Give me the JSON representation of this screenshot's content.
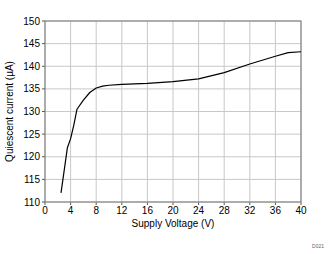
{
  "chart_data": {
    "type": "line",
    "x_label": "Supply Voltage (V)",
    "y_label": "Quiescent current (µA)",
    "annotation": "D021",
    "x": [
      2.5,
      3,
      3.5,
      4,
      4.5,
      5,
      6,
      7,
      8,
      9,
      10,
      12,
      16,
      20,
      24,
      28,
      32,
      36,
      38,
      40
    ],
    "series": [
      {
        "name": "Quiescent current",
        "color": "#000000",
        "values": [
          112,
          117,
          122,
          124,
          127,
          130.5,
          132.5,
          134.2,
          135.2,
          135.6,
          135.8,
          136,
          136.2,
          136.6,
          137.2,
          138.6,
          140.5,
          142.2,
          143,
          143.2
        ]
      }
    ],
    "xlim": [
      0,
      40
    ],
    "xticks": [
      0,
      4,
      8,
      12,
      16,
      20,
      24,
      28,
      32,
      36,
      40
    ],
    "ylim": [
      110,
      150
    ],
    "yticks": [
      110,
      115,
      120,
      125,
      130,
      135,
      140,
      145,
      150
    ],
    "grid": true
  }
}
